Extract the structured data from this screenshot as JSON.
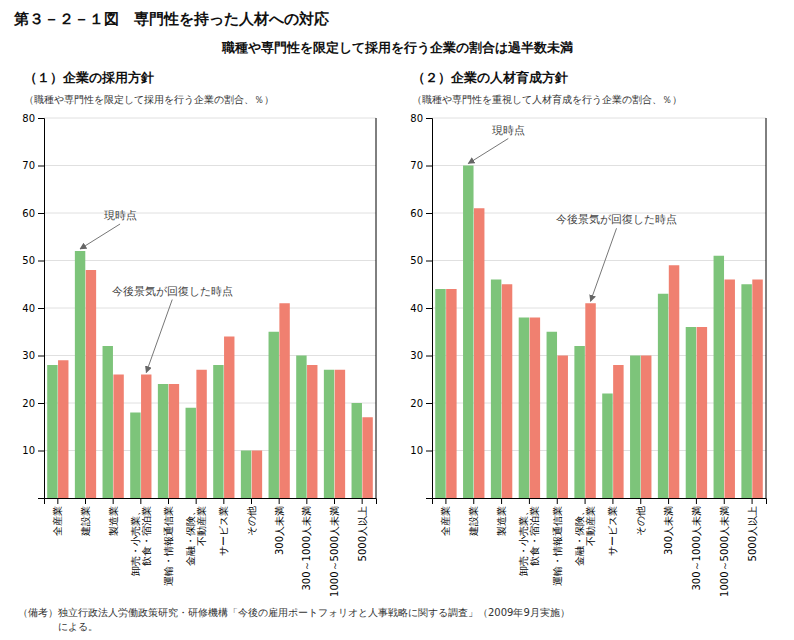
{
  "title": "第３－２－１図　専門性を持った人材への対応",
  "subtitle": "職種や専門性を限定して採用を行う企業の割合は過半数未満",
  "notes": [
    "（備考）独立行政法人労働政策研究・研修機構「今後の雇用ポートフォリオと人事戦略に関する調査」（2009年9月実施）",
    "　　　　による。"
  ],
  "chart_data": [
    {
      "type": "bar",
      "title": "（１）企業の採用方針",
      "ylabel": "（職種や専門性を限定して採用を行う企業の割合、％）",
      "categories": [
        "全産業",
        "建設業",
        "製造業",
        "卸売・小売業、\n飲食・宿泊業",
        "運輸・情報通信業",
        "金融・保険、\n不動産業",
        "サービス業",
        "その他",
        "300人未満",
        "300～1000人未満",
        "1000～5000人未満",
        "5000人以上"
      ],
      "series": [
        {
          "color": "#7dc47a",
          "values": [
            28,
            52,
            32,
            18,
            24,
            19,
            28,
            10,
            35,
            30,
            27,
            20
          ]
        },
        {
          "color": "#f08070",
          "values": [
            29,
            48,
            26,
            26,
            24,
            27,
            34,
            10,
            41,
            28,
            27,
            17
          ]
        }
      ],
      "ylim": [
        0,
        80
      ],
      "yticks": [
        10,
        20,
        30,
        40,
        50,
        60,
        70,
        80
      ],
      "grid": true,
      "annotations": [
        {
          "text": "現時点",
          "series": 0,
          "category": "建設業"
        },
        {
          "text": "今後景気が回復した時点",
          "series": 1,
          "category": "卸売・小売業、\n飲食・宿泊業"
        }
      ]
    },
    {
      "type": "bar",
      "title": "（２）企業の人材育成方針",
      "ylabel": "（職種や専門性を重視して人材育成を行う企業の割合、％）",
      "categories": [
        "全産業",
        "建設業",
        "製造業",
        "卸売・小売業、\n飲食・宿泊業",
        "運輸・情報通信業",
        "金融・保険、\n不動産業",
        "サービス業",
        "その他",
        "300人未満",
        "300～1000人未満",
        "1000～5000人未満",
        "5000人以上"
      ],
      "series": [
        {
          "color": "#7dc47a",
          "values": [
            44,
            70,
            46,
            38,
            35,
            32,
            22,
            30,
            43,
            36,
            51,
            45
          ]
        },
        {
          "color": "#f08070",
          "values": [
            44,
            61,
            45,
            38,
            30,
            41,
            28,
            30,
            49,
            36,
            46,
            46
          ]
        }
      ],
      "ylim": [
        0,
        80
      ],
      "yticks": [
        10,
        20,
        30,
        40,
        50,
        60,
        70,
        80
      ],
      "grid": true,
      "annotations": [
        {
          "text": "現時点",
          "series": 0,
          "category": "建設業"
        },
        {
          "text": "今後景気が回復した時点",
          "series": 1,
          "category": "金融・保険、\n不動産業"
        }
      ]
    }
  ]
}
